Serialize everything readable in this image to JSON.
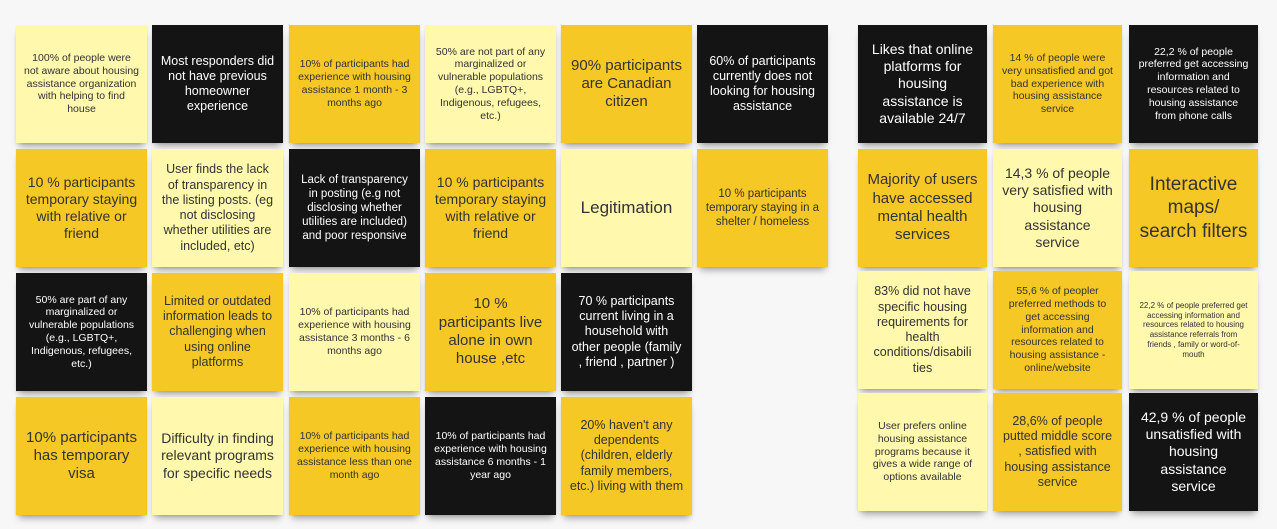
{
  "board": {
    "left_group": [
      {
        "text": "100% of people were not aware about housing assistance organization with helping to find house"
      },
      {
        "text": "Most responders did not have previous homeowner experience"
      },
      {
        "text": "10% of participants had experience with housing assistance 1 month - 3 months ago"
      },
      {
        "text": "50% are not part of any marginalized or vulnerable populations (e.g., LGBTQ+, Indigenous, refugees, etc.)"
      },
      {
        "text": "90% participants are Canadian citizen"
      },
      {
        "text": "60% of participants currently does not looking for housing assistance"
      },
      {
        "text": "10 % participants temporary staying with relative or friend"
      },
      {
        "text": "User finds the lack of transparency in the listing posts. (eg not disclosing whether utilities are included, etc)"
      },
      {
        "text": "Lack of transparency in posting (e.g not disclosing whether utilities are included) and poor responsive"
      },
      {
        "text": "10 % participants temporary staying with relative or friend"
      },
      {
        "text": "Legitimation"
      },
      {
        "text": "10 % participants temporary staying in a shelter / homeless"
      },
      {
        "text": "50% are part of any marginalized or vulnerable populations (e.g., LGBTQ+, Indigenous, refugees, etc.)"
      },
      {
        "text": "Limited or outdated information leads to challenging when using online platforms"
      },
      {
        "text": "10% of participants had experience with housing assistance 3 months - 6 months ago"
      },
      {
        "text": "10 % participants live alone in own house ,etc"
      },
      {
        "text": "70 % participants current living in a household with other people (family , friend , partner )"
      },
      {
        "text": "10% participants has temporary visa"
      },
      {
        "text": "Difficulty in finding relevant programs for specific needs"
      },
      {
        "text": "10% of participants had experience with housing assistance less than one month ago"
      },
      {
        "text": "10% of participants had experience with housing assistance 6 months - 1 year ago"
      },
      {
        "text": "20% haven't any dependents (children, elderly family members, etc.) living with them"
      }
    ],
    "right_group": [
      {
        "text": "Likes that online platforms for housing assistance is available 24/7"
      },
      {
        "text": "14 % of people were very unsatisfied and got bad experience with housing assistance service"
      },
      {
        "text": "22,2 % of people preferred get accessing information and resources related to housing assistance from phone calls"
      },
      {
        "text": "Majority of users have accessed mental health services"
      },
      {
        "text": "14,3 % of people very satisfied with housing assistance service"
      },
      {
        "text": "Interactive maps/ search filters"
      },
      {
        "text": "83% did not have specific housing requirements for health conditions/disabili ties"
      },
      {
        "text": "55,6 % of peopler preferred methods to get accessing information and resources related to housing assistance - online/website"
      },
      {
        "text": "22,2 % of people preferred get accessing information and resources related to housing assistance referrals from friends , family or word-of-mouth"
      },
      {
        "text": "User prefers online housing assistance programs because it gives a wide range of options available"
      },
      {
        "text": "28,6% of people putted middle score , satisfied with housing assistance service"
      },
      {
        "text": "42,9 % of people unsatisfied with housing assistance service"
      }
    ]
  },
  "colors": {
    "light_yellow": "#fff8ad",
    "yellow": "#f5c825",
    "black": "#141414",
    "background": "#f7f7f7"
  }
}
